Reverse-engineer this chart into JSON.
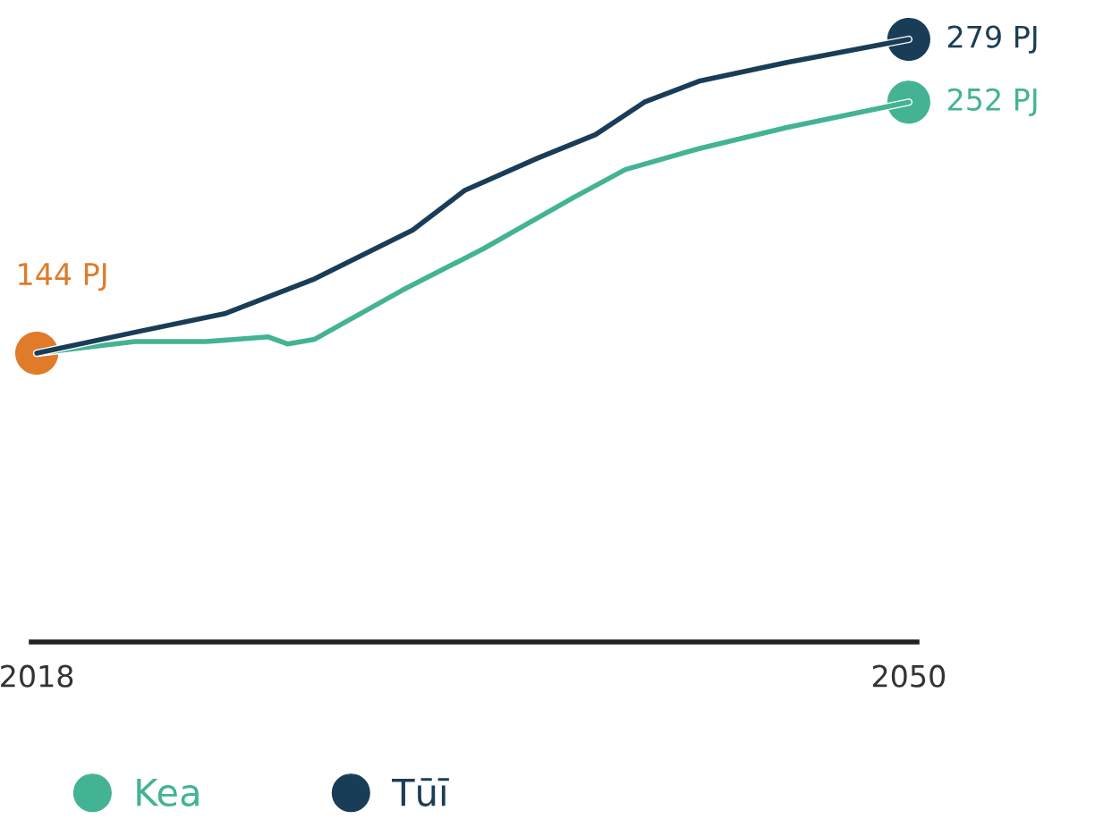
{
  "chart_data": {
    "type": "line",
    "xlim": [
      2017.8,
      2050.3
    ],
    "xticks": [
      2018,
      2050
    ],
    "grid": false,
    "legend": "bottom left",
    "line_style": "solid",
    "series": [
      {
        "name": "Kea",
        "color": "#43b394",
        "x": [
          2018,
          2021.6,
          2024.2,
          2026.5,
          2027.2,
          2028.2,
          2031.4,
          2034.4,
          2037.7,
          2039.6,
          2042.3,
          2045.5,
          2050
        ],
        "values": [
          144,
          149,
          149,
          151,
          148,
          150,
          171,
          189,
          211,
          223,
          232,
          241,
          252
        ]
      },
      {
        "name": "Tūī",
        "color": "#1a3d57",
        "x": [
          2018,
          2021.6,
          2024.9,
          2028.2,
          2031.8,
          2033.7,
          2036.4,
          2038.5,
          2040.3,
          2042.3,
          2045.5,
          2050
        ],
        "values": [
          144,
          153,
          161,
          176,
          197,
          214,
          228,
          238,
          252,
          261,
          269,
          279
        ]
      },
      {
        "type": "scatter",
        "color": "#e07b2a",
        "x": [
          2018
        ],
        "values": [
          144
        ],
        "value_labels": [
          "144 PJ"
        ]
      },
      {
        "type": "scatter",
        "color": "#1a3d57",
        "x": [
          2050
        ],
        "values": [
          279
        ],
        "value_labels": [
          "279 PJ"
        ]
      },
      {
        "type": "scatter",
        "color": "#43b394",
        "x": [
          2050
        ],
        "values": [
          252
        ],
        "value_labels": [
          "252 PJ"
        ]
      }
    ]
  }
}
